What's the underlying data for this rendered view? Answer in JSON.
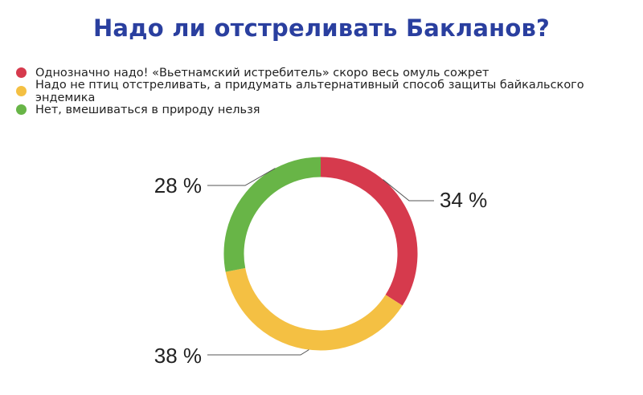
{
  "chart_data": {
    "type": "pie",
    "title": "Надо ли отстреливать Бакланов?",
    "categories": [
      "Однозначно надо! «Вьетнамский истребитель» скоро весь омуль сожрет",
      "Надо не птиц отстреливать, а придумать альтернативный способ защиты байкальского эндемика",
      "Нет, вмешиваться в природу нельзя"
    ],
    "values": [
      34,
      38,
      28
    ],
    "value_labels": [
      "34 %",
      "38 %",
      "28 %"
    ],
    "colors": [
      "#d63a4d",
      "#f4c043",
      "#68b547"
    ],
    "donut": true,
    "legend_position": "top-left"
  }
}
